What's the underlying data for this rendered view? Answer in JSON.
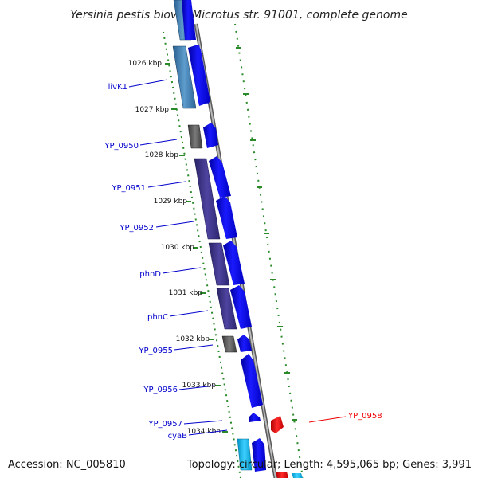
{
  "title": "Yersinia pestis biovar Microtus str. 91001, complete genome",
  "footer": {
    "accession": "Accession: NC_005810",
    "summary": "Topology: circular; Length: 4,595,065 bp; Genes: 3,991"
  },
  "colors": {
    "label_blue": "#0000cc",
    "label_red": "#ee0000",
    "tick_green": "#2a8a2a",
    "backbone": "#8a8a8a"
  },
  "kbp_marks": [
    "1026 kbp",
    "1027 kbp",
    "1028 kbp",
    "1029 kbp",
    "1030 kbp",
    "1031 kbp",
    "1032 kbp",
    "1033 kbp",
    "1034 kbp"
  ],
  "gene_labels": [
    {
      "text": "livK1",
      "color": "blue"
    },
    {
      "text": "YP_0950",
      "color": "blue"
    },
    {
      "text": "YP_0951",
      "color": "blue"
    },
    {
      "text": "YP_0952",
      "color": "blue"
    },
    {
      "text": "phnD",
      "color": "blue"
    },
    {
      "text": "phnC",
      "color": "blue"
    },
    {
      "text": "YP_0955",
      "color": "blue"
    },
    {
      "text": "YP_0956",
      "color": "blue"
    },
    {
      "text": "YP_0957",
      "color": "blue"
    },
    {
      "text": "cyaB",
      "color": "blue"
    },
    {
      "text": "YP_0958",
      "color": "red"
    }
  ]
}
